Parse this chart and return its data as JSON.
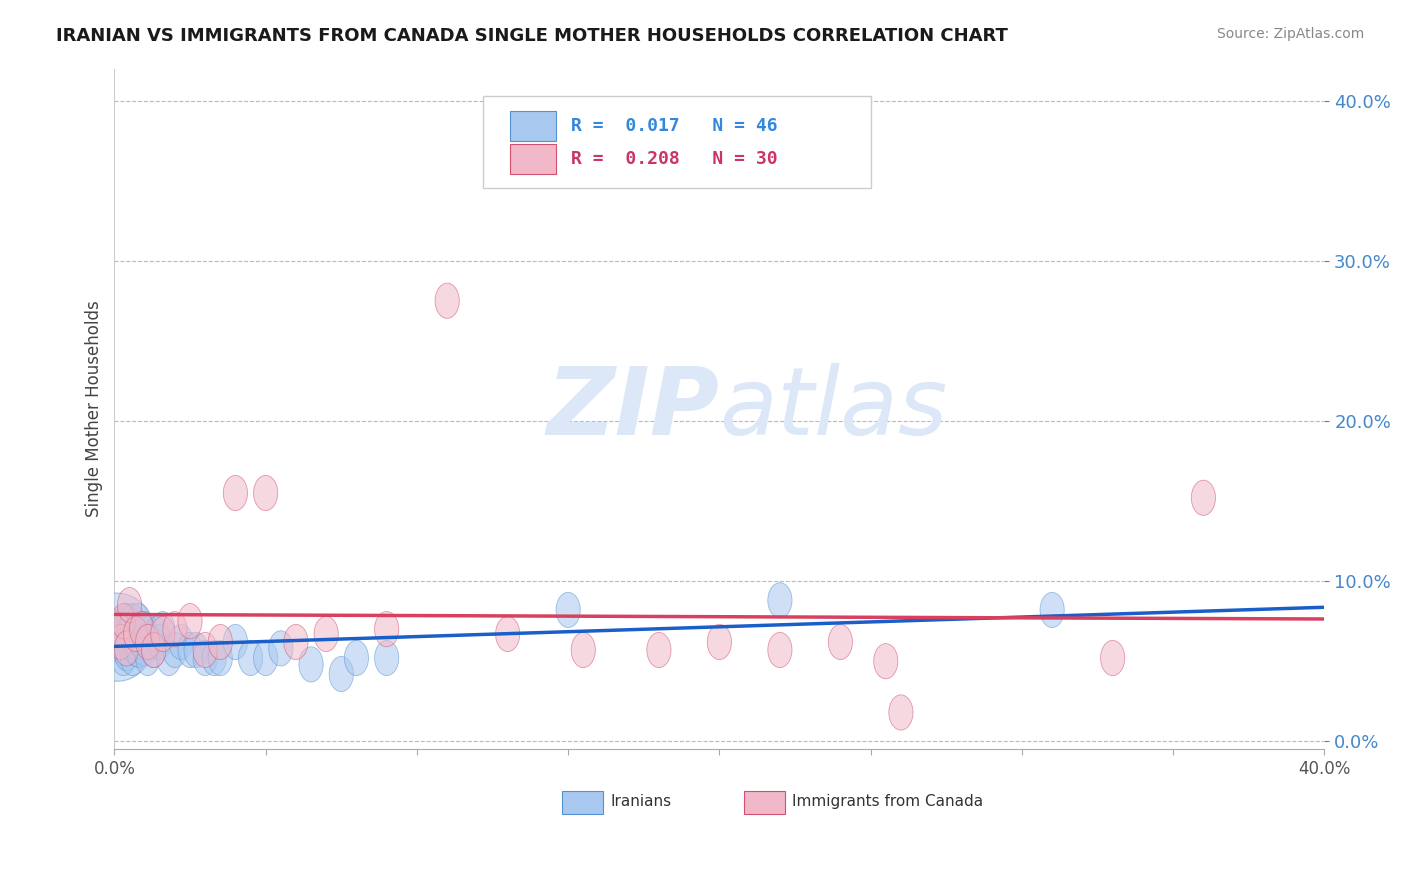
{
  "title": "IRANIAN VS IMMIGRANTS FROM CANADA SINGLE MOTHER HOUSEHOLDS CORRELATION CHART",
  "source": "Source: ZipAtlas.com",
  "ylabel": "Single Mother Households",
  "xlim": [
    0.0,
    0.4
  ],
  "ylim": [
    -0.005,
    0.42
  ],
  "yticks": [
    0.0,
    0.1,
    0.2,
    0.3,
    0.4
  ],
  "xticks": [
    0.0,
    0.05,
    0.1,
    0.15,
    0.2,
    0.25,
    0.3,
    0.35,
    0.4
  ],
  "color_iranian": "#a8c8f0",
  "color_iranian_edge": "#5590d0",
  "color_canada": "#f0b8c8",
  "color_canada_edge": "#d05070",
  "color_line_iranian": "#1a5fc8",
  "color_line_canada": "#d84060",
  "watermark_zip": "ZIP",
  "watermark_atlas": "atlas",
  "watermark_color": "#dce8f8",
  "iranians_x": [
    0.001,
    0.002,
    0.002,
    0.003,
    0.003,
    0.003,
    0.004,
    0.004,
    0.005,
    0.005,
    0.005,
    0.006,
    0.006,
    0.007,
    0.007,
    0.007,
    0.008,
    0.008,
    0.009,
    0.01,
    0.01,
    0.011,
    0.012,
    0.013,
    0.014,
    0.015,
    0.016,
    0.018,
    0.02,
    0.022,
    0.025,
    0.027,
    0.03,
    0.033,
    0.035,
    0.04,
    0.045,
    0.05,
    0.055,
    0.065,
    0.075,
    0.08,
    0.09,
    0.15,
    0.22,
    0.31
  ],
  "iranians_y": [
    0.065,
    0.06,
    0.072,
    0.058,
    0.068,
    0.052,
    0.075,
    0.055,
    0.068,
    0.062,
    0.07,
    0.052,
    0.075,
    0.058,
    0.062,
    0.068,
    0.057,
    0.075,
    0.062,
    0.058,
    0.07,
    0.052,
    0.062,
    0.057,
    0.067,
    0.062,
    0.07,
    0.052,
    0.057,
    0.062,
    0.057,
    0.057,
    0.052,
    0.052,
    0.052,
    0.062,
    0.052,
    0.052,
    0.058,
    0.048,
    0.042,
    0.052,
    0.052,
    0.082,
    0.088,
    0.082
  ],
  "canada_x": [
    0.001,
    0.002,
    0.003,
    0.004,
    0.005,
    0.007,
    0.009,
    0.011,
    0.013,
    0.016,
    0.02,
    0.025,
    0.03,
    0.035,
    0.04,
    0.05,
    0.06,
    0.07,
    0.09,
    0.11,
    0.13,
    0.155,
    0.18,
    0.2,
    0.22,
    0.24,
    0.255,
    0.26,
    0.33,
    0.36
  ],
  "canada_y": [
    0.07,
    0.062,
    0.075,
    0.058,
    0.085,
    0.067,
    0.07,
    0.062,
    0.057,
    0.067,
    0.07,
    0.075,
    0.057,
    0.062,
    0.155,
    0.155,
    0.062,
    0.067,
    0.07,
    0.275,
    0.067,
    0.057,
    0.057,
    0.062,
    0.057,
    0.062,
    0.05,
    0.018,
    0.052,
    0.152
  ]
}
